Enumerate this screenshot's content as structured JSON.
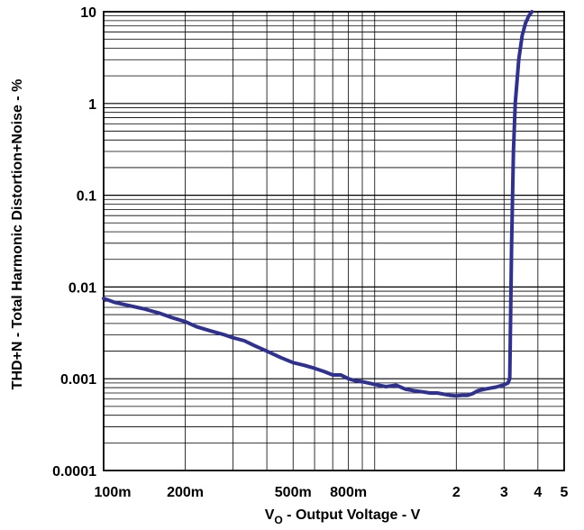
{
  "chart_data": {
    "type": "line",
    "title": "",
    "xlabel": {
      "main": "V",
      "sub": "O",
      "rest": " - Output Voltage - V"
    },
    "ylabel": "THD+N - Total Harmonic Distortion+Noise - %",
    "xscale": "log",
    "yscale": "log",
    "xlim": [
      0.1,
      5
    ],
    "ylim": [
      0.0001,
      10
    ],
    "grid": true,
    "legend": "none",
    "line_color": "#2e3192",
    "x_ticks": [
      {
        "value": 0.1,
        "label": "100m"
      },
      {
        "value": 0.2,
        "label": "200m"
      },
      {
        "value": 0.5,
        "label": "500m"
      },
      {
        "value": 0.8,
        "label": "800m"
      },
      {
        "value": 2,
        "label": "2"
      },
      {
        "value": 3,
        "label": "3"
      },
      {
        "value": 4,
        "label": "4"
      },
      {
        "value": 5,
        "label": "5"
      }
    ],
    "y_ticks": [
      {
        "value": 10,
        "label": "10"
      },
      {
        "value": 1,
        "label": "1"
      },
      {
        "value": 0.1,
        "label": "0.1"
      },
      {
        "value": 0.01,
        "label": "0.01"
      },
      {
        "value": 0.001,
        "label": "0.001"
      },
      {
        "value": 0.0001,
        "label": "0.0001"
      }
    ],
    "series": [
      {
        "x": [
          0.1,
          0.11,
          0.12,
          0.14,
          0.16,
          0.18,
          0.2,
          0.22,
          0.25,
          0.28,
          0.3,
          0.33,
          0.36,
          0.4,
          0.45,
          0.5,
          0.55,
          0.6,
          0.65,
          0.7,
          0.75,
          0.8,
          0.85,
          0.9,
          1.0,
          1.1,
          1.2,
          1.3,
          1.4,
          1.5,
          1.6,
          1.7,
          1.8,
          1.9,
          2.0,
          2.1,
          2.2,
          2.3,
          2.4,
          2.6,
          2.8,
          3.0,
          3.1,
          3.15,
          3.2,
          3.25,
          3.3,
          3.4,
          3.5,
          3.6,
          3.7,
          3.8
        ],
        "y": [
          0.0075,
          0.0068,
          0.0064,
          0.0058,
          0.0052,
          0.0046,
          0.0042,
          0.0037,
          0.0033,
          0.003,
          0.0028,
          0.0026,
          0.0023,
          0.002,
          0.0017,
          0.0015,
          0.0014,
          0.0013,
          0.0012,
          0.0011,
          0.0011,
          0.001,
          0.00095,
          0.00093,
          0.00087,
          0.00082,
          0.00085,
          0.00077,
          0.00074,
          0.00072,
          0.0007,
          0.0007,
          0.00068,
          0.00066,
          0.00065,
          0.00066,
          0.00066,
          0.00069,
          0.00074,
          0.00078,
          0.00081,
          0.00086,
          0.0009,
          0.001,
          0.03,
          0.3,
          1.0,
          3.0,
          5.5,
          7.5,
          9.0,
          10.0
        ]
      }
    ]
  }
}
